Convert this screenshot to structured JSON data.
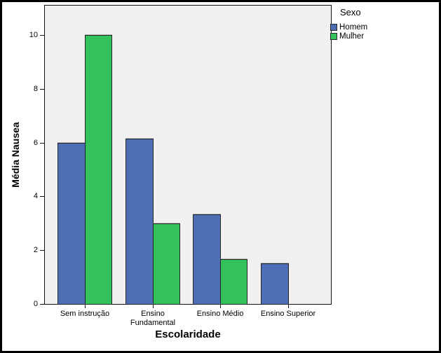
{
  "chart_data": {
    "type": "bar",
    "categories": [
      "Sem instrução",
      "Ensino Fundamental",
      "Ensino Médio",
      "Ensino Superior"
    ],
    "series": [
      {
        "name": "Homem",
        "color": "#4D6DB5",
        "values": [
          6.0,
          6.15,
          3.33,
          1.5
        ]
      },
      {
        "name": "Mulher",
        "color": "#32C15A",
        "values": [
          10.0,
          3.0,
          1.67,
          null
        ]
      }
    ],
    "title": "",
    "xlabel": "Escolaridade",
    "ylabel": "Média Nausea",
    "ylim": [
      0,
      11.12
    ],
    "yticks": [
      0,
      2,
      4,
      6,
      8,
      10
    ],
    "legend_title": "Sexo",
    "legend_position": "top-right",
    "grid": false,
    "plot_bg": "#f0f0f0",
    "bar_outline_color": "#23252b"
  }
}
